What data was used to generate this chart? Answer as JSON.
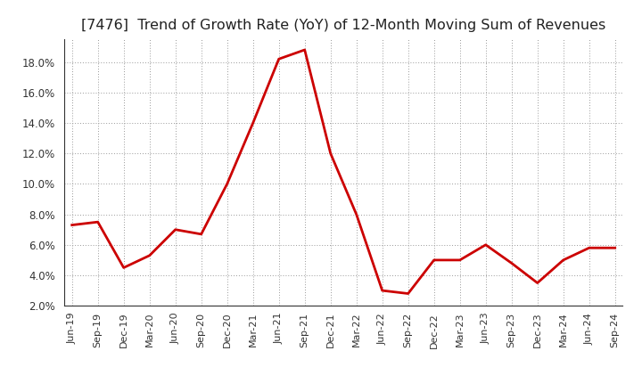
{
  "title": "[7476]  Trend of Growth Rate (YoY) of 12-Month Moving Sum of Revenues",
  "title_fontsize": 11.5,
  "line_color": "#cc0000",
  "line_width": 2.0,
  "background_color": "#ffffff",
  "plot_bg_color": "#ffffff",
  "grid_color": "#999999",
  "ylim": [
    0.02,
    0.195
  ],
  "yticks": [
    0.02,
    0.04,
    0.06,
    0.08,
    0.1,
    0.12,
    0.14,
    0.16,
    0.18
  ],
  "labels": [
    "Jun-19",
    "Sep-19",
    "Dec-19",
    "Mar-20",
    "Jun-20",
    "Sep-20",
    "Dec-20",
    "Mar-21",
    "Jun-21",
    "Sep-21",
    "Dec-21",
    "Mar-22",
    "Jun-22",
    "Sep-22",
    "Dec-22",
    "Mar-23",
    "Jun-23",
    "Sep-23",
    "Dec-23",
    "Mar-24",
    "Jun-24",
    "Sep-24"
  ],
  "values": [
    0.073,
    0.075,
    0.045,
    0.053,
    0.07,
    0.067,
    0.1,
    0.14,
    0.182,
    0.188,
    0.12,
    0.08,
    0.03,
    0.028,
    0.05,
    0.05,
    0.06,
    0.048,
    0.035,
    0.05,
    0.058,
    0.058
  ]
}
